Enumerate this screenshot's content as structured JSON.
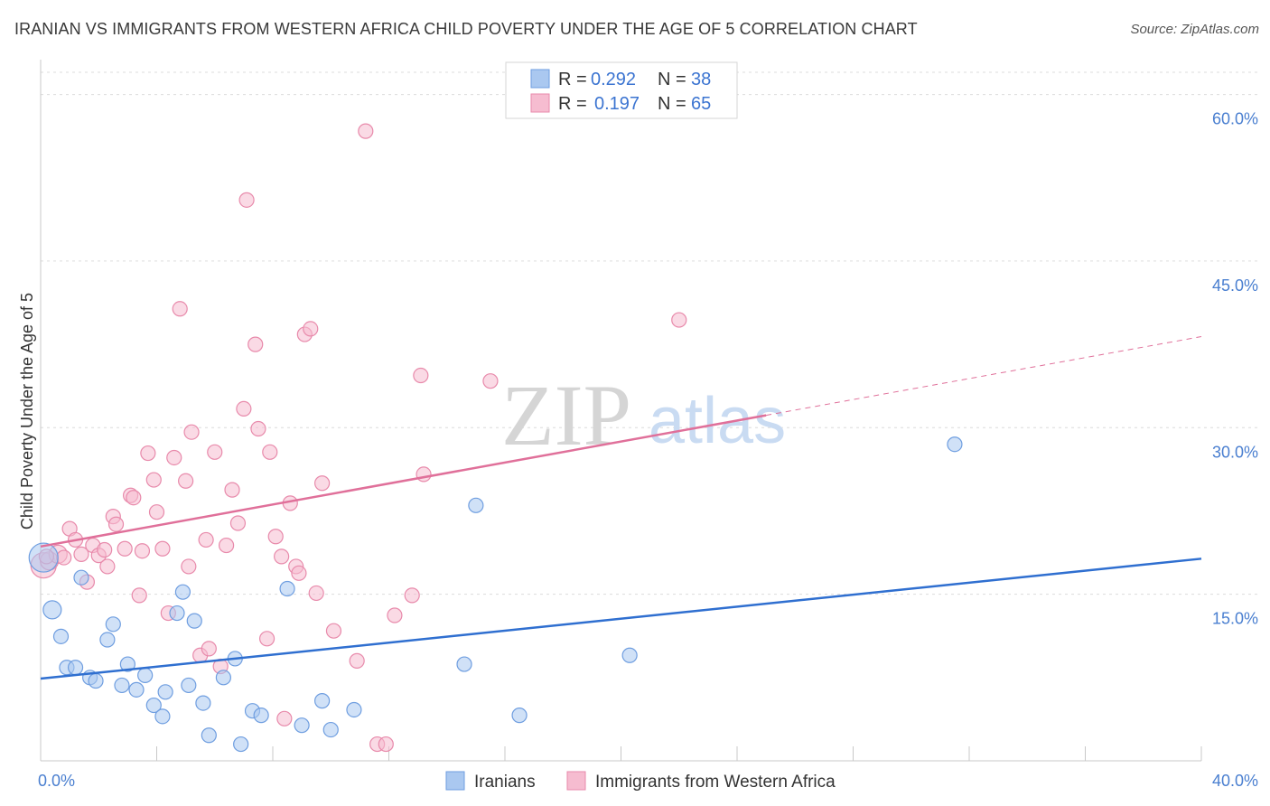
{
  "title": "IRANIAN VS IMMIGRANTS FROM WESTERN AFRICA CHILD POVERTY UNDER THE AGE OF 5 CORRELATION CHART",
  "source": "Source: ZipAtlas.com",
  "watermark": {
    "zip": "ZIP",
    "atlas": "atlas"
  },
  "legend": {
    "rows": [
      {
        "r_label": "R =",
        "r_value": "0.292",
        "n_label": "N =",
        "n_value": "38"
      },
      {
        "r_label": "R =",
        "r_value": "0.197",
        "n_label": "N =",
        "n_value": "65"
      }
    ]
  },
  "chart_data": {
    "type": "scatter",
    "title": "IRANIAN VS IMMIGRANTS FROM WESTERN AFRICA CHILD POVERTY UNDER THE AGE OF 5 CORRELATION CHART",
    "xlabel": "",
    "ylabel": "Child Poverty Under the Age of 5",
    "xlim": [
      0,
      40
    ],
    "ylim": [
      0,
      62
    ],
    "x_tick_labels": [
      {
        "v": 0,
        "label": "0.0%"
      },
      {
        "v": 40,
        "label": "40.0%"
      }
    ],
    "y_tick_labels": [
      {
        "v": 15,
        "label": "15.0%"
      },
      {
        "v": 30,
        "label": "30.0%"
      },
      {
        "v": 45,
        "label": "45.0%"
      },
      {
        "v": 60,
        "label": "60.0%"
      }
    ],
    "grid": true,
    "legend_position": "top-center",
    "colors": {
      "iranians_fill": "#aac8f0",
      "iranians_stroke": "#6f9ee0",
      "iranians_line": "#2f6fd0",
      "wa_fill": "#f6bcd0",
      "wa_stroke": "#e88aab",
      "wa_line": "#e0709a"
    },
    "series": [
      {
        "name": "Iranians",
        "r": 0.292,
        "n": 38,
        "trend": {
          "x0": 0,
          "y0": 7.4,
          "x1": 40,
          "y1": 18.2,
          "dashed_from": null
        },
        "points": [
          [
            0.1,
            18.3,
            16
          ],
          [
            0.4,
            13.6,
            10
          ],
          [
            0.7,
            11.2,
            8
          ],
          [
            0.9,
            8.4,
            8
          ],
          [
            1.2,
            8.4,
            8
          ],
          [
            1.4,
            16.5,
            8
          ],
          [
            1.7,
            7.5,
            8
          ],
          [
            1.9,
            7.2,
            8
          ],
          [
            2.3,
            10.9,
            8
          ],
          [
            2.5,
            12.3,
            8
          ],
          [
            2.8,
            6.8,
            8
          ],
          [
            3.0,
            8.7,
            8
          ],
          [
            3.3,
            6.4,
            8
          ],
          [
            3.6,
            7.7,
            8
          ],
          [
            3.9,
            5.0,
            8
          ],
          [
            4.2,
            4.0,
            8
          ],
          [
            4.3,
            6.2,
            8
          ],
          [
            4.7,
            13.3,
            8
          ],
          [
            4.9,
            15.2,
            8
          ],
          [
            5.1,
            6.8,
            8
          ],
          [
            5.3,
            12.6,
            8
          ],
          [
            5.6,
            5.2,
            8
          ],
          [
            5.8,
            2.3,
            8
          ],
          [
            6.3,
            7.5,
            8
          ],
          [
            6.7,
            9.2,
            8
          ],
          [
            6.9,
            1.5,
            8
          ],
          [
            7.3,
            4.5,
            8
          ],
          [
            7.6,
            4.1,
            8
          ],
          [
            8.5,
            15.5,
            8
          ],
          [
            9.0,
            3.2,
            8
          ],
          [
            9.7,
            5.4,
            8
          ],
          [
            10.0,
            2.8,
            8
          ],
          [
            10.8,
            4.6,
            8
          ],
          [
            15.0,
            23.0,
            8
          ],
          [
            14.6,
            8.7,
            8
          ],
          [
            16.5,
            4.1,
            8
          ],
          [
            20.3,
            9.5,
            8
          ],
          [
            31.5,
            28.5,
            8
          ]
        ]
      },
      {
        "name": "Immigrants from Western Africa",
        "r": 0.197,
        "n": 65,
        "trend": {
          "x0": 0,
          "y0": 19.3,
          "x1": 40,
          "y1": 38.2,
          "dashed_from": 25
        },
        "points": [
          [
            0.1,
            17.6,
            14
          ],
          [
            0.3,
            18.0,
            10
          ],
          [
            0.6,
            18.6,
            10
          ],
          [
            0.8,
            18.3,
            8
          ],
          [
            1.0,
            20.9,
            8
          ],
          [
            1.2,
            19.9,
            8
          ],
          [
            1.4,
            18.6,
            8
          ],
          [
            1.6,
            16.1,
            8
          ],
          [
            1.8,
            19.4,
            8
          ],
          [
            2.0,
            18.5,
            8
          ],
          [
            2.2,
            19.0,
            8
          ],
          [
            2.3,
            17.5,
            8
          ],
          [
            2.5,
            22.0,
            8
          ],
          [
            2.6,
            21.3,
            8
          ],
          [
            2.9,
            19.1,
            8
          ],
          [
            3.1,
            23.9,
            8
          ],
          [
            3.2,
            23.7,
            8
          ],
          [
            3.4,
            14.9,
            8
          ],
          [
            3.5,
            18.9,
            8
          ],
          [
            3.7,
            27.7,
            8
          ],
          [
            3.9,
            25.3,
            8
          ],
          [
            4.0,
            22.4,
            8
          ],
          [
            4.2,
            19.1,
            8
          ],
          [
            4.4,
            13.3,
            8
          ],
          [
            4.6,
            27.3,
            8
          ],
          [
            4.8,
            40.7,
            8
          ],
          [
            5.0,
            25.2,
            8
          ],
          [
            5.1,
            17.5,
            8
          ],
          [
            5.2,
            29.6,
            8
          ],
          [
            5.5,
            9.5,
            8
          ],
          [
            5.7,
            19.9,
            8
          ],
          [
            5.8,
            10.1,
            8
          ],
          [
            6.0,
            27.8,
            8
          ],
          [
            6.2,
            8.5,
            8
          ],
          [
            6.4,
            19.4,
            8
          ],
          [
            6.6,
            24.4,
            8
          ],
          [
            6.8,
            21.4,
            8
          ],
          [
            7.0,
            31.7,
            8
          ],
          [
            7.1,
            50.5,
            8
          ],
          [
            7.4,
            37.5,
            8
          ],
          [
            7.5,
            29.9,
            8
          ],
          [
            7.8,
            11.0,
            8
          ],
          [
            7.9,
            27.8,
            8
          ],
          [
            8.1,
            20.2,
            8
          ],
          [
            8.3,
            18.4,
            8
          ],
          [
            8.4,
            3.8,
            8
          ],
          [
            8.6,
            23.2,
            8
          ],
          [
            8.8,
            17.5,
            8
          ],
          [
            8.9,
            16.9,
            8
          ],
          [
            9.1,
            38.4,
            8
          ],
          [
            9.3,
            38.9,
            8
          ],
          [
            9.5,
            15.1,
            8
          ],
          [
            9.7,
            25.0,
            8
          ],
          [
            10.1,
            11.7,
            8
          ],
          [
            10.9,
            9.0,
            8
          ],
          [
            11.2,
            56.7,
            8
          ],
          [
            11.6,
            1.5,
            8
          ],
          [
            11.9,
            1.5,
            8
          ],
          [
            12.2,
            13.1,
            8
          ],
          [
            12.8,
            14.9,
            8
          ],
          [
            13.1,
            34.7,
            8
          ],
          [
            13.2,
            25.8,
            8
          ],
          [
            15.5,
            34.2,
            8
          ],
          [
            22.0,
            39.7,
            8
          ],
          [
            0.2,
            18.4,
            8
          ]
        ]
      }
    ]
  },
  "bottom_legend": [
    {
      "label": "Iranians"
    },
    {
      "label": "Immigrants from Western Africa"
    }
  ]
}
